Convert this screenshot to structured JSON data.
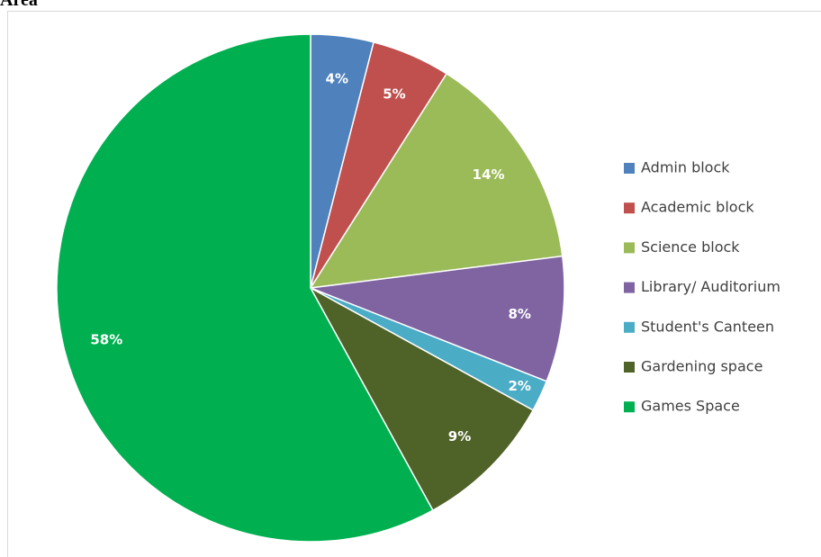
{
  "chart_data": {
    "type": "pie",
    "title": "Area",
    "categories": [
      "Admin block",
      "Academic block",
      "Science block",
      "Library/ Auditorium",
      "Student's Canteen",
      "Gardening space",
      "Games Space"
    ],
    "values": [
      4,
      5,
      14,
      8,
      2,
      9,
      58
    ],
    "value_labels": [
      "4%",
      "5%",
      "14%",
      "8%",
      "2%",
      "9%",
      "58%"
    ],
    "colors": [
      "#4f81bd",
      "#c0504d",
      "#9bbb59",
      "#8064a2",
      "#4bacc6",
      "#4f6228",
      "#00b050"
    ],
    "legend": "right"
  }
}
